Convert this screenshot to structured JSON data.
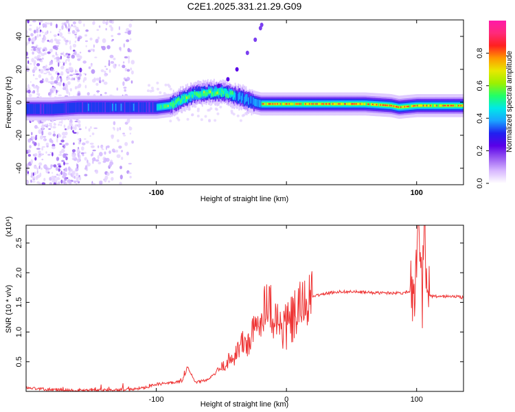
{
  "title": "C2E1.2025.331.21.29.G09",
  "chart_data": [
    {
      "type": "heatmap",
      "xlabel": "Height of straight line (km)",
      "ylabel": "Frequency (Hz)",
      "xlim": [
        -200,
        136
      ],
      "ylim": [
        -50,
        50
      ],
      "xticks": [
        -100,
        0,
        100
      ],
      "xtick_labels": [
        "-100",
        "",
        "100"
      ],
      "yticks": [
        -40,
        -20,
        0,
        20,
        40
      ],
      "ytick_labels": [
        "-40",
        "-20",
        "0",
        "20",
        "40"
      ],
      "colorbar": {
        "label": "Normalized spectral amplitude",
        "range": [
          0,
          1
        ],
        "ticks": [
          0,
          0.2,
          0.4,
          0.6,
          0.8
        ],
        "tick_labels": [
          "0.0",
          "0.2",
          "0.4",
          "0.6",
          "0.8"
        ],
        "colors": [
          "#ffffff",
          "#d8b8ff",
          "#9a5cf2",
          "#5a00e8",
          "#2020f0",
          "#1aa4ff",
          "#00e8e8",
          "#22ff66",
          "#9cf000",
          "#e8e800",
          "#ff9900",
          "#ff2020",
          "#ff2a7a",
          "#ff1aa8"
        ]
      },
      "main_trace": {
        "x": [
          -200,
          -180,
          -160,
          -140,
          -120,
          -100,
          -90,
          -80,
          -70,
          -60,
          -50,
          -45,
          -40,
          -35,
          -30,
          -25,
          -20,
          -10,
          0,
          20,
          40,
          60,
          80,
          86,
          100,
          110,
          120,
          136
        ],
        "freq": [
          -4,
          -4,
          -3,
          -3,
          -3,
          -3,
          -2,
          2,
          5,
          6,
          6,
          5,
          4,
          3,
          1,
          0,
          -1,
          -1,
          -1,
          -1,
          -1,
          -1,
          -2,
          -3,
          -2,
          -2,
          -2,
          -2
        ]
      },
      "branch_trace": {
        "x": [
          -52,
          -45,
          -38,
          -30,
          -24,
          -20,
          -19
        ],
        "freq": [
          10,
          14,
          20,
          30,
          38,
          45,
          47
        ]
      }
    },
    {
      "type": "line",
      "xlabel": "Height of straight line (km)",
      "ylabel": "SNR (10 * v/v)",
      "scale_label": "(x10⁴)",
      "xlim": [
        -200,
        136
      ],
      "ylim": [
        0,
        2.8
      ],
      "xticks": [
        -100,
        0,
        100
      ],
      "xtick_labels": [
        "-100",
        "0",
        "100"
      ],
      "yticks": [
        0.5,
        1,
        1.5,
        2,
        2.5
      ],
      "ytick_labels": [
        "0.5",
        "1.0",
        "1.5",
        "2.0",
        "2.5"
      ],
      "color": "#ee3333",
      "series": [
        {
          "name": "SNR",
          "x": [
            -200,
            -180,
            -160,
            -140,
            -120,
            -110,
            -100,
            -90,
            -80,
            -76,
            -70,
            -60,
            -50,
            -40,
            -35,
            -30,
            -25,
            -20,
            -15,
            -10,
            -5,
            0,
            5,
            10,
            15,
            20,
            30,
            40,
            50,
            60,
            70,
            80,
            90,
            96,
            100,
            102,
            104,
            106,
            108,
            112,
            120,
            130,
            136
          ],
          "values": [
            0.06,
            0.03,
            0.02,
            0.02,
            0.03,
            0.06,
            0.12,
            0.14,
            0.18,
            0.4,
            0.15,
            0.2,
            0.4,
            0.6,
            0.8,
            0.8,
            1.0,
            1.2,
            1.6,
            1.3,
            1.1,
            1.1,
            1.2,
            1.4,
            1.5,
            1.6,
            1.65,
            1.68,
            1.68,
            1.67,
            1.66,
            1.66,
            1.66,
            1.7,
            2.1,
            2.3,
            1.5,
            2.75,
            1.62,
            1.6,
            1.6,
            1.6,
            1.58
          ]
        }
      ]
    }
  ]
}
